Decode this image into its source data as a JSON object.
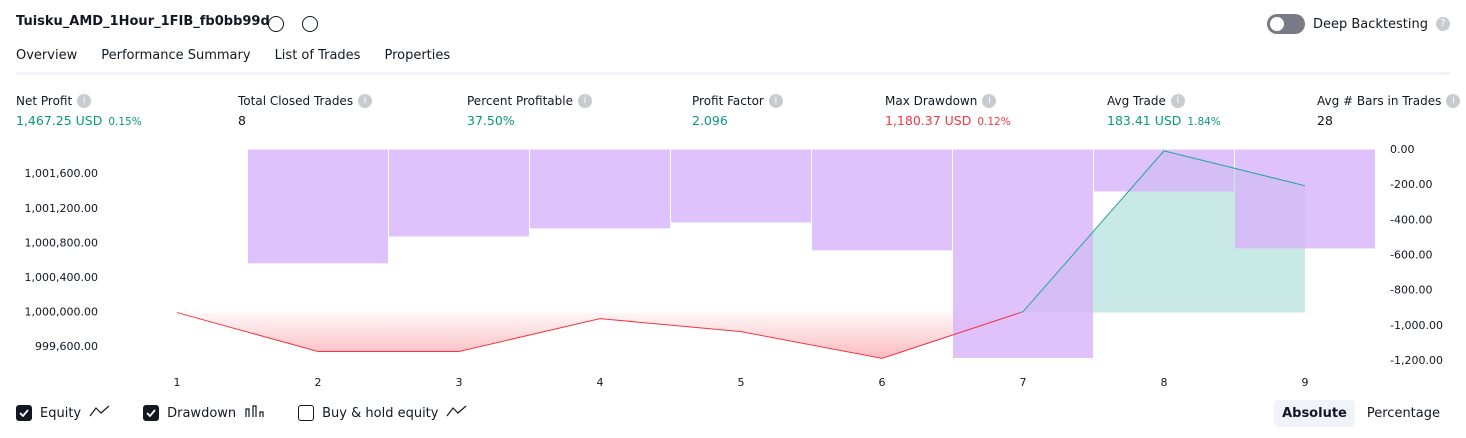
{
  "header": {
    "title": "Tuisku_AMD_1Hour_1FIB_fb0bb99d",
    "toggle_label": "Deep Backtesting"
  },
  "tabs": {
    "items": [
      "Overview",
      "Performance Summary",
      "List of Trades",
      "Properties"
    ],
    "active": 0
  },
  "metrics": [
    {
      "label": "Net Profit",
      "value": "1,467.25 USD",
      "sub": "0.15%",
      "color": "#089981"
    },
    {
      "label": "Total Closed Trades",
      "value": "8",
      "color": "#131722"
    },
    {
      "label": "Percent Profitable",
      "value": "37.50%",
      "color": "#089981"
    },
    {
      "label": "Profit Factor",
      "value": "2.096",
      "color": "#089981"
    },
    {
      "label": "Max Drawdown",
      "value": "1,180.37 USD",
      "sub": "0.12%",
      "color": "#f23645"
    },
    {
      "label": "Avg Trade",
      "value": "183.41 USD",
      "sub": "1.84%",
      "color": "#089981"
    },
    {
      "label": "Avg # Bars in Trades",
      "value": "28",
      "color": "#131722"
    }
  ],
  "chart_data": {
    "type": "equity-drawdown",
    "categories": [
      "1",
      "2",
      "3",
      "4",
      "5",
      "6",
      "7",
      "8",
      "9"
    ],
    "series": [
      {
        "name": "Equity",
        "color": "#26a69a",
        "below_color": "#f23645",
        "values": [
          1000000,
          999550,
          999550,
          999930,
          999780,
          999470,
          1000010,
          1001870,
          1001467
        ]
      },
      {
        "name": "Drawdown",
        "color": "#d8b4fb",
        "axis": "y2",
        "values": [
          0,
          -642,
          -489,
          -443,
          -409,
          -568,
          -1180,
          -233,
          -557
        ]
      }
    ],
    "ylim": [
      999440,
      1001880
    ],
    "yticks": [
      {
        "value": 999600,
        "label": "999,600.00"
      },
      {
        "value": 1000000,
        "label": "1,000,000.00"
      },
      {
        "value": 1000400,
        "label": "1,000,400.00"
      },
      {
        "value": 1000800,
        "label": "1,000,800.00"
      },
      {
        "value": 1001200,
        "label": "1,001,200.00"
      },
      {
        "value": 1001600,
        "label": "1,001,600.00"
      }
    ],
    "y2lim": [
      -1200,
      0
    ],
    "y2ticks": [
      {
        "value": 0,
        "label": "0.00"
      },
      {
        "value": -200,
        "label": "-200.00"
      },
      {
        "value": -400,
        "label": "-400.00"
      },
      {
        "value": -600,
        "label": "-600.00"
      },
      {
        "value": -800,
        "label": "-800.00"
      },
      {
        "value": -1000,
        "label": "-1,000.00"
      },
      {
        "value": -1200,
        "label": "-1,200.00"
      }
    ]
  },
  "legend": [
    {
      "label": "Equity",
      "checked": true
    },
    {
      "label": "Drawdown",
      "checked": true
    },
    {
      "label": "Buy & hold equity",
      "checked": false
    }
  ],
  "modes": {
    "items": [
      "Absolute",
      "Percentage"
    ],
    "active": 0
  }
}
